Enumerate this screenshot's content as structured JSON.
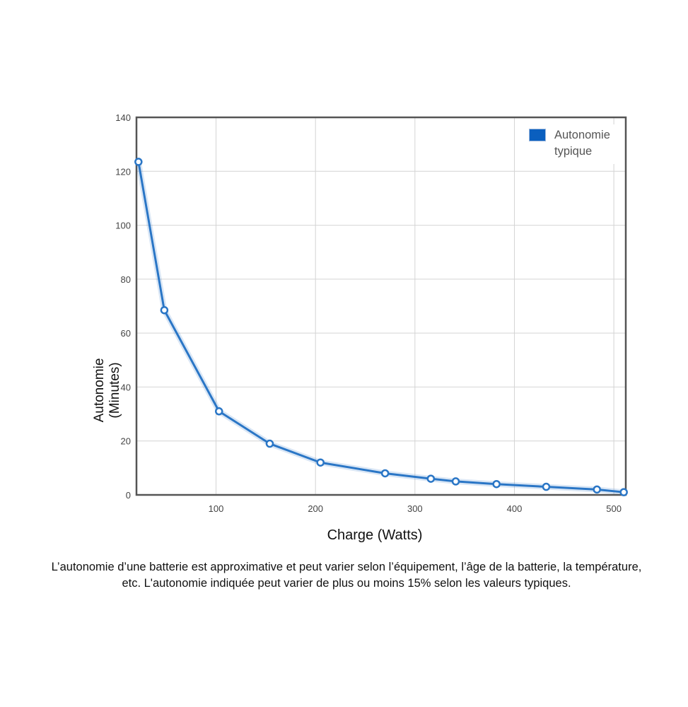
{
  "chart_data": {
    "type": "line",
    "xlabel": "Charge (Watts)",
    "ylabel": "Autonomie (Minutes)",
    "ylabel_lines": [
      "Autonomie",
      "(Minutes)"
    ],
    "xlim": [
      20,
      512
    ],
    "ylim": [
      0,
      140
    ],
    "x_ticks": [
      100,
      200,
      300,
      400,
      500
    ],
    "y_ticks": [
      0,
      20,
      40,
      60,
      80,
      100,
      120,
      140
    ],
    "grid": true,
    "legend_position": "top-right",
    "series": [
      {
        "name": "Autonomie typique",
        "color": "#2a76c6",
        "x": [
          22,
          48,
          103,
          154,
          205,
          270,
          316,
          341,
          382,
          432,
          483,
          510
        ],
        "y": [
          123.5,
          68.5,
          31,
          19,
          12,
          8,
          6,
          5,
          4,
          3,
          2,
          1
        ]
      }
    ]
  },
  "legend": {
    "label": "Autonomie typique",
    "swatch_color": "#0a5fbf"
  },
  "footnote": "L’autonomie d’une batterie est approximative et peut varier selon l’équipement, l’âge de la batterie, la température, etc. L'autonomie indiquée peut varier de plus ou moins 15% selon les valeurs typiques."
}
